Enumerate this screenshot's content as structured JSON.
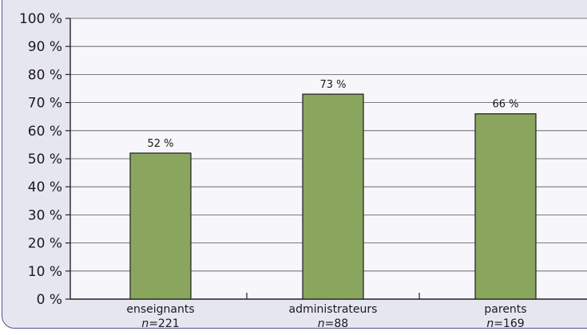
{
  "colors": {
    "bar_fill": "#8aa55d",
    "bar_stroke": "#1e1e1e",
    "grid": "#555555",
    "plot_background": "#f6f6fb",
    "frame_background": "#e6e6f1",
    "frame_border": "#4f5591"
  },
  "chart_data": {
    "type": "bar",
    "title": "",
    "xlabel": "",
    "ylabel": "",
    "ylim": [
      0,
      100
    ],
    "y_ticks": [
      0,
      10,
      20,
      30,
      40,
      50,
      60,
      70,
      80,
      90,
      100
    ],
    "y_tick_labels": [
      "0 %",
      "10 %",
      "20 %",
      "30 %",
      "40 %",
      "50 %",
      "60 %",
      "70 %",
      "80 %",
      "90 %",
      "100 %"
    ],
    "grid": true,
    "categories": [
      "enseignants",
      "administrateurs",
      "parents"
    ],
    "n_prefix": "n",
    "n_values": [
      "=221",
      "=88",
      "=169"
    ],
    "values": [
      52,
      73,
      66
    ],
    "value_labels": [
      "52 %",
      "73 %",
      "66 %"
    ]
  }
}
